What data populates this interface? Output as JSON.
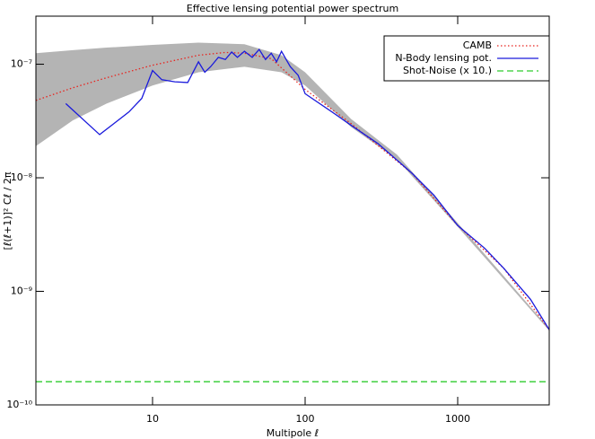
{
  "chart_data": {
    "type": "line",
    "title": "Effective lensing potential power spectrum",
    "x_label": "Multipole ℓ",
    "y_label": "[ℓ(ℓ+1)]² Cℓ / 2π",
    "xscale": "log",
    "yscale": "log",
    "xlim": [
      1.72,
      3980
    ],
    "ylim": [
      1e-10,
      2.65e-07
    ],
    "xticks": [
      10,
      100,
      1000
    ],
    "yticks": [
      {
        "value": 1e-10,
        "label": "10⁻¹⁰"
      },
      {
        "value": 1e-09,
        "label": "10⁻⁹"
      },
      {
        "value": 1e-08,
        "label": "10⁻⁸"
      },
      {
        "value": 1e-07,
        "label": "10⁻⁷"
      }
    ],
    "legend": "upper right",
    "band": {
      "color": "#b4b4b4",
      "x": [
        1.72,
        3,
        5,
        10,
        20,
        40,
        70,
        100,
        200,
        400,
        1000,
        3980
      ],
      "upper": [
        1.25e-07,
        1.33e-07,
        1.4e-07,
        1.48e-07,
        1.55e-07,
        1.5e-07,
        1.2e-07,
        8.5e-08,
        3.3e-08,
        1.6e-08,
        4e-09,
        4.7e-10
      ],
      "lower": [
        1.9e-08,
        3.2e-08,
        4.5e-08,
        6.5e-08,
        8.5e-08,
        9.5e-08,
        8.5e-08,
        6.5e-08,
        2.8e-08,
        1.45e-08,
        3.7e-09,
        4.5e-10
      ]
    },
    "series": [
      {
        "name": "CAMB",
        "color": "#e8231e",
        "style": "dotted",
        "x": [
          1.72,
          3,
          5,
          10,
          20,
          30,
          40,
          60,
          100,
          200,
          500,
          1000,
          2000,
          3980
        ],
        "values": [
          4.8e-08,
          6.2e-08,
          7.6e-08,
          9.8e-08,
          1.2e-07,
          1.27e-07,
          1.25e-07,
          1.12e-07,
          6e-08,
          3e-08,
          1.1e-08,
          3.8e-09,
          1.6e-09,
          4.6e-10
        ]
      },
      {
        "name": "N-Body lensing pot.",
        "color": "#1a1adc",
        "style": "solid",
        "x": [
          2.7,
          4.5,
          7,
          8.5,
          10,
          11.5,
          14,
          17,
          20,
          22,
          24,
          27,
          30,
          33,
          36,
          40,
          45,
          50,
          55,
          60,
          65,
          70,
          80,
          90,
          100,
          150,
          200,
          300,
          500,
          700,
          1000,
          1500,
          2000,
          3000,
          3980
        ],
        "values": [
          4.5e-08,
          2.4e-08,
          3.8e-08,
          5e-08,
          8.8e-08,
          7.3e-08,
          7e-08,
          6.9e-08,
          1.05e-07,
          8.5e-08,
          9.5e-08,
          1.15e-07,
          1.1e-07,
          1.28e-07,
          1.15e-07,
          1.3e-07,
          1.15e-07,
          1.35e-07,
          1.1e-07,
          1.25e-07,
          1.05e-07,
          1.3e-07,
          9.5e-08,
          8e-08,
          5.5e-08,
          3.8e-08,
          2.9e-08,
          2e-08,
          1.1e-08,
          7e-09,
          3.8e-09,
          2.4e-09,
          1.6e-09,
          8.5e-10,
          4.6e-10
        ]
      },
      {
        "name": "Shot-Noise (x 10.)",
        "color": "#2ecc2e",
        "style": "dashed",
        "x": [
          1.72,
          3980
        ],
        "values": [
          1.6e-10,
          1.6e-10
        ]
      }
    ]
  }
}
